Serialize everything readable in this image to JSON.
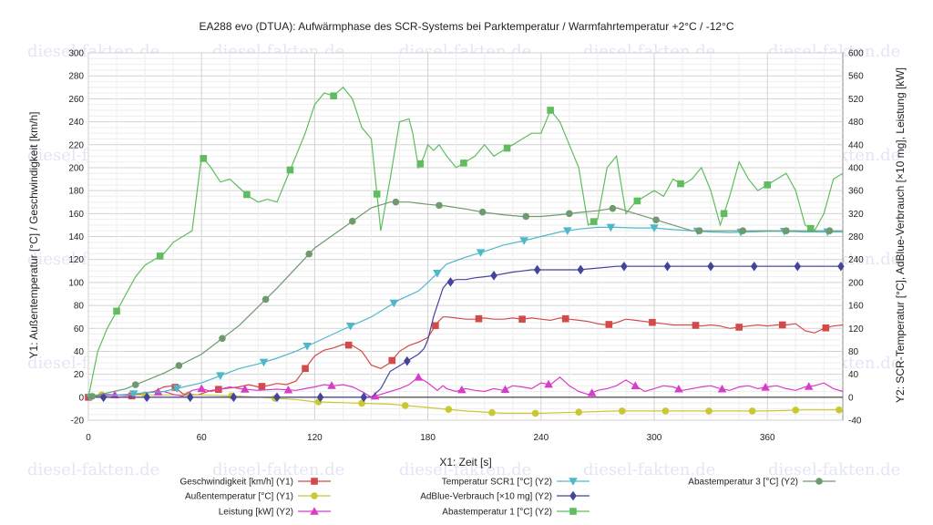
{
  "watermark": "diesel-fakten.de",
  "chart_data": {
    "type": "line",
    "title": "EA288 evo (DTUA): Aufwärmphase des SCR-Systems bei Parktemperatur / Warmfahrtemperatur +2°C / -12°C",
    "xlabel": "X1: Zeit [s]",
    "ylabel_left": "Y1: Außentemperatur [°C] / Geschwindigkeit [km/h]",
    "ylabel_right": "Y2: SCR-Temperatur [°C], AdBlue-Verbrauch [×10 mg], Leistung [kW]",
    "xlim": [
      0,
      400
    ],
    "ylim_left": [
      -20,
      300
    ],
    "ylim_right": [
      -40,
      600
    ],
    "x_ticks": [
      0,
      60,
      120,
      180,
      240,
      300,
      360
    ],
    "y_ticks_left": [
      -20,
      0,
      20,
      40,
      60,
      80,
      100,
      120,
      140,
      160,
      180,
      200,
      220,
      240,
      260,
      280,
      300
    ],
    "y_ticks_right": [
      -40,
      0,
      40,
      80,
      120,
      160,
      200,
      240,
      280,
      320,
      360,
      400,
      440,
      480,
      520,
      560,
      600
    ],
    "grid": true,
    "legend_position": "bottom",
    "series": [
      {
        "name": "Geschwindigkeit [km/h] (Y1)",
        "axis": "left",
        "color": "#d24a4a",
        "marker": "square",
        "x": [
          0,
          10,
          20,
          28,
          35,
          40,
          45,
          50,
          58,
          60,
          65,
          70,
          75,
          80,
          85,
          90,
          95,
          100,
          105,
          110,
          115,
          120,
          125,
          130,
          135,
          140,
          145,
          150,
          155,
          160,
          165,
          170,
          175,
          180,
          185,
          188,
          190,
          195,
          200,
          205,
          210,
          215,
          220,
          225,
          230,
          235,
          240,
          245,
          250,
          255,
          260,
          265,
          270,
          275,
          280,
          285,
          290,
          295,
          300,
          305,
          310,
          315,
          320,
          325,
          330,
          335,
          340,
          345,
          350,
          355,
          360,
          365,
          370,
          375,
          380,
          385,
          390,
          395,
          400
        ],
        "y": [
          0,
          0,
          0,
          3,
          5,
          9,
          10,
          3,
          2,
          3,
          6,
          7,
          8,
          9,
          11,
          9,
          10,
          12,
          11,
          14,
          25,
          36,
          41,
          43,
          46,
          45,
          40,
          28,
          25,
          30,
          40,
          45,
          48,
          52,
          65,
          70,
          70,
          69,
          68,
          68,
          69,
          68,
          68,
          69,
          68,
          69,
          68,
          67,
          69,
          68,
          67,
          66,
          64,
          63,
          65,
          68,
          67,
          66,
          65,
          64,
          63,
          63,
          63,
          62,
          63,
          62,
          60,
          61,
          62,
          63,
          62,
          63,
          63,
          64,
          58,
          56,
          60,
          62,
          63
        ]
      },
      {
        "name": "Außentemperatur [°C] (Y1)",
        "axis": "left",
        "color": "#c8c832",
        "marker": "circle",
        "x": [
          0,
          20,
          40,
          60,
          80,
          90,
          100,
          110,
          120,
          140,
          160,
          180,
          200,
          220,
          240,
          260,
          280,
          300,
          320,
          340,
          360,
          380,
          400
        ],
        "y": [
          2,
          2,
          2,
          2,
          1,
          0,
          -1,
          -2,
          -4,
          -5,
          -6,
          -9,
          -12,
          -14,
          -14,
          -13,
          -12,
          -12,
          -12,
          -12,
          -12,
          -11,
          -11
        ]
      },
      {
        "name": "Leistung [kW] (Y2)",
        "axis": "right",
        "color": "#d83cc8",
        "marker": "triangle",
        "x": [
          0,
          10,
          20,
          30,
          40,
          45,
          50,
          55,
          60,
          65,
          70,
          75,
          80,
          90,
          100,
          110,
          115,
          120,
          125,
          130,
          135,
          140,
          145,
          150,
          155,
          160,
          165,
          170,
          175,
          180,
          185,
          188,
          190,
          195,
          200,
          205,
          210,
          215,
          220,
          225,
          230,
          235,
          240,
          245,
          250,
          255,
          260,
          265,
          270,
          275,
          280,
          285,
          290,
          295,
          300,
          305,
          310,
          315,
          320,
          325,
          330,
          335,
          340,
          345,
          350,
          355,
          360,
          365,
          370,
          375,
          380,
          385,
          390,
          395,
          400
        ],
        "y": [
          0,
          5,
          3,
          8,
          10,
          5,
          2,
          12,
          15,
          10,
          14,
          18,
          15,
          12,
          14,
          12,
          15,
          18,
          22,
          20,
          22,
          18,
          10,
          0,
          5,
          10,
          15,
          22,
          35,
          25,
          12,
          20,
          15,
          10,
          15,
          12,
          10,
          15,
          12,
          20,
          18,
          15,
          25,
          22,
          35,
          20,
          10,
          5,
          12,
          15,
          20,
          30,
          20,
          10,
          15,
          20,
          18,
          12,
          15,
          18,
          20,
          15,
          12,
          18,
          20,
          15,
          18,
          20,
          15,
          12,
          18,
          20,
          25,
          15,
          10
        ]
      },
      {
        "name": "Temperatur SCR1 [°C] (Y2)",
        "axis": "right",
        "color": "#4fb8c8",
        "marker": "triangle-down",
        "x": [
          0,
          20,
          40,
          60,
          80,
          90,
          100,
          110,
          120,
          135,
          150,
          165,
          175,
          180,
          190,
          200,
          210,
          220,
          230,
          240,
          250,
          260,
          270,
          280,
          290,
          300,
          310,
          320,
          330,
          340,
          350,
          360,
          370,
          380,
          390,
          400
        ],
        "y": [
          0,
          5,
          10,
          25,
          50,
          58,
          68,
          80,
          95,
          118,
          140,
          170,
          185,
          200,
          232,
          244,
          254,
          265,
          272,
          280,
          288,
          293,
          296,
          296,
          295,
          295,
          292,
          290,
          288,
          287,
          288,
          289,
          289,
          288,
          288,
          288
        ]
      },
      {
        "name": "AdBlue-Verbrauch [×10 mg] (Y2)",
        "axis": "right",
        "color": "#44449c",
        "marker": "diamond",
        "x": [
          0,
          10,
          20,
          30,
          40,
          50,
          60,
          70,
          80,
          90,
          100,
          110,
          120,
          130,
          140,
          150,
          155,
          160,
          165,
          170,
          175,
          178,
          180,
          183,
          186,
          188,
          190,
          195,
          200,
          205,
          210,
          215,
          220,
          225,
          230,
          235,
          240,
          245,
          250,
          260,
          270,
          280,
          290,
          300,
          310,
          320,
          330,
          340,
          350,
          360,
          370,
          380,
          390,
          400
        ],
        "y": [
          0,
          0,
          0,
          0,
          0,
          0,
          0,
          0,
          0,
          0,
          0,
          0,
          0,
          0,
          0,
          0,
          15,
          45,
          55,
          65,
          75,
          85,
          100,
          140,
          170,
          190,
          198,
          205,
          205,
          208,
          210,
          212,
          215,
          218,
          220,
          222,
          222,
          222,
          222,
          222,
          225,
          228,
          228,
          228,
          228,
          228,
          228,
          228,
          228,
          228,
          228,
          228,
          228,
          228
        ]
      },
      {
        "name": "Abastemperatur 1 [°C] (Y2)",
        "axis": "right",
        "color": "#5fbd5f",
        "marker": "square",
        "x": [
          0,
          5,
          10,
          15,
          20,
          25,
          30,
          35,
          40,
          45,
          50,
          55,
          60,
          65,
          70,
          75,
          80,
          85,
          90,
          95,
          100,
          105,
          110,
          115,
          120,
          125,
          130,
          135,
          140,
          145,
          150,
          155,
          160,
          165,
          170,
          172,
          175,
          178,
          180,
          183,
          186,
          190,
          195,
          200,
          205,
          210,
          215,
          220,
          225,
          230,
          235,
          240,
          245,
          250,
          255,
          260,
          265,
          270,
          275,
          280,
          285,
          290,
          295,
          300,
          305,
          310,
          315,
          320,
          325,
          330,
          335,
          340,
          345,
          350,
          355,
          360,
          365,
          370,
          375,
          380,
          385,
          390,
          395,
          400
        ],
        "y": [
          0,
          80,
          120,
          150,
          180,
          210,
          230,
          240,
          250,
          270,
          280,
          290,
          420,
          400,
          375,
          380,
          365,
          350,
          340,
          345,
          340,
          380,
          420,
          460,
          510,
          530,
          525,
          540,
          520,
          470,
          450,
          290,
          380,
          480,
          485,
          460,
          400,
          420,
          440,
          430,
          440,
          420,
          400,
          410,
          420,
          440,
          420,
          430,
          440,
          450,
          460,
          460,
          500,
          480,
          440,
          400,
          300,
          310,
          400,
          420,
          320,
          340,
          350,
          360,
          350,
          380,
          370,
          380,
          400,
          360,
          300,
          350,
          410,
          380,
          360,
          370,
          380,
          390,
          360,
          300,
          290,
          320,
          380,
          390
        ]
      },
      {
        "name": "Abastemperatur 3 [°C] (Y2)",
        "axis": "right",
        "color": "#6e9a6e",
        "marker": "circle",
        "x": [
          0,
          20,
          40,
          60,
          80,
          100,
          120,
          135,
          150,
          160,
          170,
          175,
          180,
          190,
          200,
          210,
          220,
          230,
          240,
          250,
          260,
          270,
          280,
          290,
          300,
          310,
          320,
          330,
          340,
          350,
          360,
          370,
          380,
          390,
          400
        ],
        "y": [
          0,
          15,
          42,
          75,
          125,
          190,
          260,
          295,
          330,
          340,
          340,
          338,
          336,
          333,
          328,
          322,
          318,
          315,
          315,
          318,
          322,
          325,
          330,
          320,
          310,
          300,
          290,
          290,
          290,
          290,
          290,
          290,
          290,
          290,
          290
        ]
      }
    ]
  }
}
